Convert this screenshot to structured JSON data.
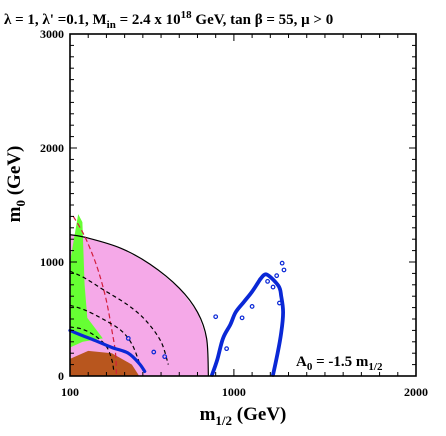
{
  "chart_data": {
    "type": "contour",
    "title": {
      "lambda": "λ = 1, λ' =0.1, M",
      "min_sub": "in",
      "mid": " = 2.4 x 10",
      "exp": "18",
      "tail": " GeV, tan β = 55,  μ > 0"
    },
    "xlabel": {
      "main": "m",
      "sub": "1/2",
      "unit": " (GeV)"
    },
    "ylabel": {
      "main": "m",
      "sub": "0",
      "unit": " (GeV)"
    },
    "annotation": {
      "main": "A",
      "sub0": "0",
      "mid": " = -1.5 m",
      "sub1": "1/2"
    },
    "xlim": [
      100,
      2000
    ],
    "ylim": [
      0,
      3000
    ],
    "x_ticks": [
      "100",
      "1000",
      "2000"
    ],
    "y_ticks": [
      "0",
      "1000",
      "2000",
      "3000"
    ],
    "regions": [
      {
        "name": "pink-region",
        "color": "#f5a9e8",
        "points": [
          [
            100,
            1240
          ],
          [
            200,
            1210
          ],
          [
            380,
            1120
          ],
          [
            540,
            980
          ],
          [
            700,
            770
          ],
          [
            800,
            560
          ],
          [
            850,
            330
          ],
          [
            860,
            0
          ],
          [
            100,
            0
          ]
        ]
      },
      {
        "name": "green-region",
        "color": "#66ff33",
        "points": [
          [
            100,
            1000
          ],
          [
            145,
            1420
          ],
          [
            168,
            1350
          ],
          [
            180,
            800
          ],
          [
            195,
            510
          ],
          [
            280,
            330
          ],
          [
            170,
            300
          ],
          [
            100,
            250
          ]
        ]
      },
      {
        "name": "brown-region",
        "color": "#b8561e",
        "points": [
          [
            100,
            150
          ],
          [
            200,
            220
          ],
          [
            330,
            200
          ],
          [
            440,
            100
          ],
          [
            480,
            0
          ],
          [
            100,
            0
          ]
        ]
      }
    ],
    "lines": [
      {
        "name": "pink-boundary",
        "color": "#000000",
        "dash": "none",
        "points": [
          [
            100,
            1240
          ],
          [
            200,
            1210
          ],
          [
            380,
            1120
          ],
          [
            540,
            980
          ],
          [
            700,
            770
          ],
          [
            800,
            560
          ],
          [
            850,
            330
          ],
          [
            860,
            0
          ]
        ]
      },
      {
        "name": "red-dashed-contour",
        "color": "#d21e3c",
        "dash": "5,3",
        "points": [
          [
            118,
            1400
          ],
          [
            170,
            1260
          ],
          [
            215,
            1100
          ],
          [
            260,
            900
          ],
          [
            300,
            660
          ],
          [
            330,
            400
          ],
          [
            350,
            200
          ],
          [
            355,
            0
          ]
        ]
      },
      {
        "name": "dashed-contour-outer",
        "color": "#000000",
        "dash": "4,3",
        "points": [
          [
            100,
            920
          ],
          [
            180,
            860
          ],
          [
            280,
            760
          ],
          [
            420,
            620
          ],
          [
            520,
            480
          ],
          [
            600,
            300
          ],
          [
            640,
            100
          ]
        ]
      },
      {
        "name": "dashed-contour-middle",
        "color": "#000000",
        "dash": "4,3",
        "points": [
          [
            100,
            620
          ],
          [
            180,
            580
          ],
          [
            280,
            500
          ],
          [
            380,
            400
          ],
          [
            440,
            280
          ],
          [
            480,
            120
          ]
        ]
      },
      {
        "name": "dashed-contour-inner",
        "color": "#000000",
        "dash": "4,3",
        "points": [
          [
            100,
            430
          ],
          [
            170,
            410
          ],
          [
            240,
            350
          ],
          [
            300,
            260
          ],
          [
            330,
            140
          ],
          [
            340,
            50
          ]
        ]
      }
    ],
    "blue_curves": [
      {
        "name": "blue-curve-low",
        "width": 3.2,
        "points": [
          [
            100,
            400
          ],
          [
            160,
            360
          ],
          [
            240,
            310
          ],
          [
            330,
            250
          ],
          [
            420,
            200
          ],
          [
            480,
            110
          ],
          [
            510,
            40
          ]
        ]
      },
      {
        "name": "blue-funnel-left",
        "width": 3.8,
        "points": [
          [
            880,
            10
          ],
          [
            910,
            150
          ],
          [
            940,
            330
          ],
          [
            980,
            450
          ],
          [
            1010,
            560
          ],
          [
            1055,
            650
          ],
          [
            1100,
            740
          ],
          [
            1145,
            850
          ]
        ]
      },
      {
        "name": "blue-funnel-right",
        "width": 3.8,
        "points": [
          [
            1215,
            10
          ],
          [
            1240,
            200
          ],
          [
            1260,
            380
          ],
          [
            1270,
            560
          ],
          [
            1260,
            700
          ],
          [
            1245,
            790
          ],
          [
            1180,
            890
          ],
          [
            1145,
            850
          ]
        ]
      }
    ],
    "blue_dots": [
      [
        1185,
        830
      ],
      [
        1215,
        780
      ],
      [
        1235,
        880
      ],
      [
        1250,
        640
      ],
      [
        960,
        240
      ],
      [
        1045,
        510
      ],
      [
        1100,
        610
      ],
      [
        900,
        520
      ],
      [
        420,
        330
      ],
      [
        560,
        210
      ],
      [
        620,
        170
      ],
      [
        1265,
        990
      ],
      [
        1275,
        930
      ]
    ],
    "colors": {
      "pink": "#f5a9e8",
      "green": "#66ff33",
      "brown": "#b8561e",
      "blue": "#0a28d6",
      "red": "#d21e3c"
    }
  }
}
